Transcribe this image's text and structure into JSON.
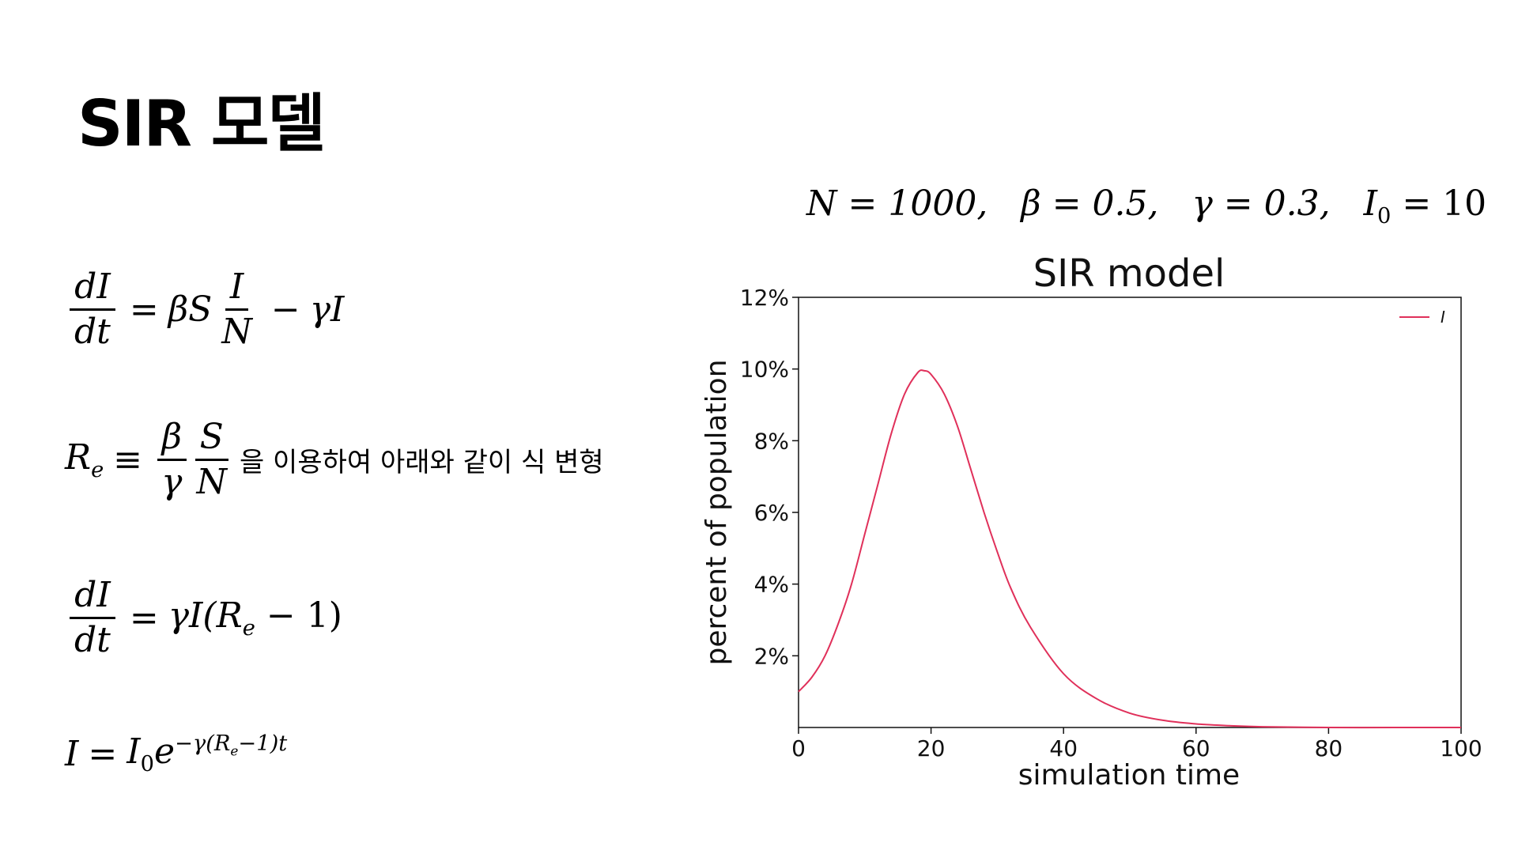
{
  "slide": {
    "title": "SIR 모델"
  },
  "equations": {
    "eq1": {
      "lhs_num": "dI",
      "lhs_den": "dt",
      "eq": "=",
      "rhs_a": "βS",
      "frac_num": "I",
      "frac_den": "N",
      "minus": "−",
      "rhs_b": "γI"
    },
    "eq2": {
      "lhs": "R",
      "lhs_sub": "e",
      "equiv": "≡",
      "f1_num": "β",
      "f1_den": "γ",
      "f2_num": "S",
      "f2_den": "N",
      "text": "을 이용하여 아래와 같이 식 변형"
    },
    "eq3": {
      "lhs_num": "dI",
      "lhs_den": "dt",
      "eq": "=",
      "rhs_a": "γI(R",
      "rhs_sub": "e",
      "rhs_b": " − 1)"
    },
    "eq4": {
      "lhs": "I",
      "eq": "=",
      "rhs_a": "I",
      "rhs_sub": "0",
      "rhs_b": "e",
      "exp_a": "−γ(R",
      "exp_sub": "e",
      "exp_b": "−1)t"
    }
  },
  "params": {
    "n": "N = 1000,",
    "beta": "β = 0.5,",
    "gamma": "γ = 0.3,",
    "i0_pre": "I",
    "i0_sub": "0",
    "i0_post": " = 10"
  },
  "chart_data": {
    "type": "line",
    "title": "SIR model",
    "xlabel": "simulation time",
    "ylabel": "percent of population",
    "xlim": [
      0,
      100
    ],
    "ylim": [
      0,
      12
    ],
    "x_ticks": [
      "0",
      "20",
      "40",
      "60",
      "80",
      "100"
    ],
    "y_ticks": [
      "2%",
      "4%",
      "6%",
      "8%",
      "10%",
      "12%"
    ],
    "legend_position": "top-right",
    "series": [
      {
        "name": "I",
        "color": "#e0305a",
        "x": [
          0,
          2,
          4,
          6,
          8,
          10,
          12,
          14,
          16,
          18,
          19,
          20,
          22,
          24,
          26,
          28,
          30,
          32,
          35,
          40,
          45,
          50,
          55,
          60,
          65,
          70,
          80,
          90,
          100
        ],
        "y": [
          1.0,
          1.4,
          2.0,
          2.9,
          4.0,
          5.4,
          6.8,
          8.2,
          9.3,
          9.9,
          9.95,
          9.85,
          9.3,
          8.4,
          7.2,
          6.0,
          4.9,
          3.9,
          2.8,
          1.5,
          0.8,
          0.4,
          0.2,
          0.1,
          0.05,
          0.02,
          0.0,
          0.0,
          0.0
        ]
      }
    ]
  }
}
